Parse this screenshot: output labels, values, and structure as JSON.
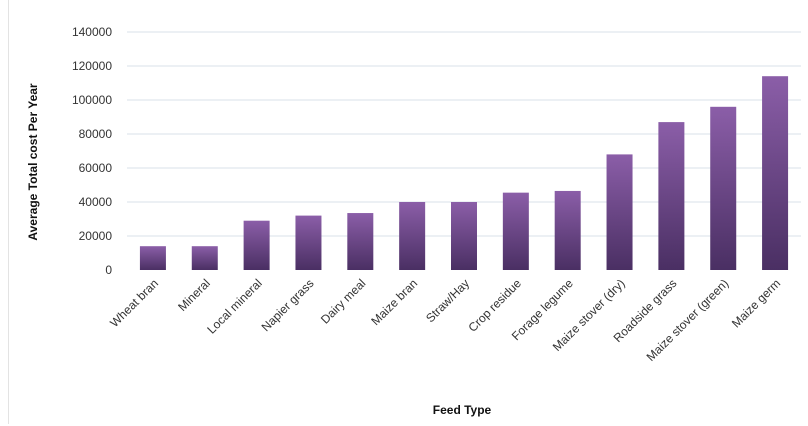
{
  "chart_data": {
    "type": "bar",
    "title": "",
    "xlabel": "Feed Type",
    "ylabel": "Average Total cost Per Year",
    "ylim": [
      0,
      140000
    ],
    "yticks": [
      0,
      20000,
      40000,
      60000,
      80000,
      100000,
      120000,
      140000
    ],
    "grid": true,
    "legend": "none",
    "categories": [
      "Wheat bran",
      "Mineral",
      "Local mineral",
      "Napier grass",
      "Dairy meal",
      "Maize bran",
      "Straw/Hay",
      "Crop residue",
      "Forage legume",
      "Maize stover (dry)",
      "Roadside grass",
      "Maize stover (green)",
      "Maize germ"
    ],
    "values": [
      14000,
      14000,
      29000,
      32000,
      33500,
      40000,
      40000,
      45500,
      46500,
      68000,
      87000,
      96000,
      114000
    ],
    "colors": {
      "bar_top": "#8b5ea8",
      "bar_bottom": "#4a2f63",
      "grid": "#d9e1ea"
    }
  }
}
